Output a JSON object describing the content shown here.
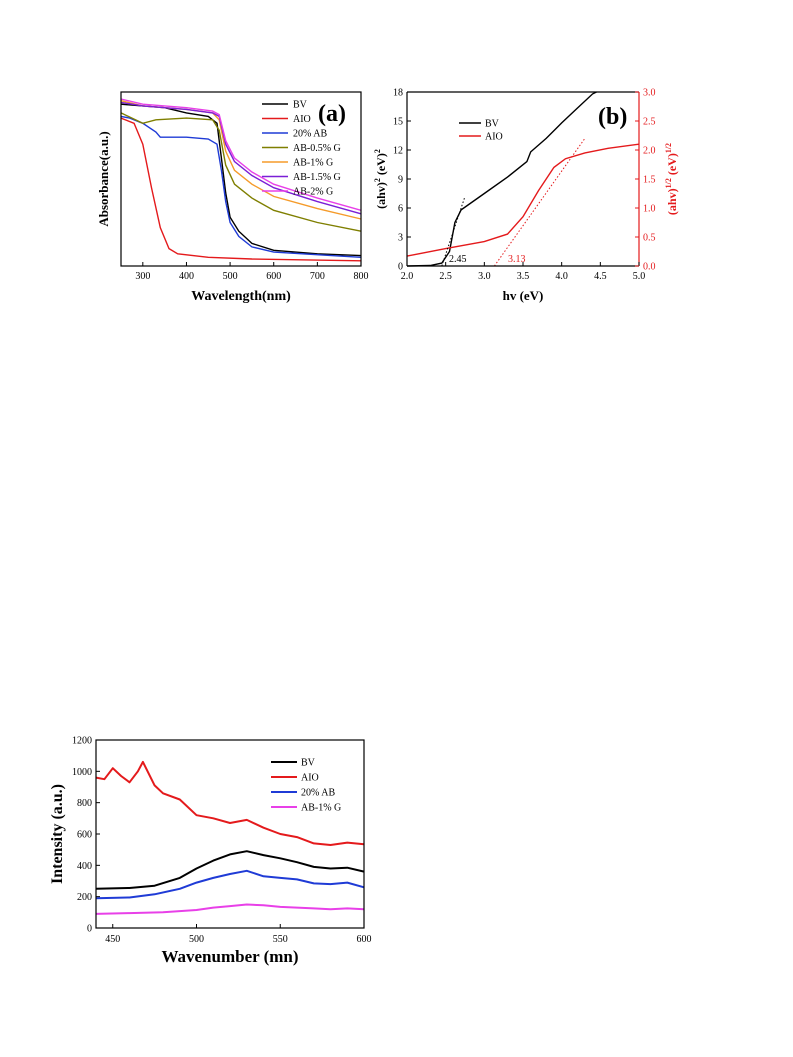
{
  "chart_data": [
    {
      "type": "line",
      "panel_label": "(a)",
      "xlabel": "Wavelength(nm)",
      "ylabel": "Absorbance(a.u.)",
      "xlim": [
        250,
        800
      ],
      "xticks": [
        "300",
        "400",
        "500",
        "600",
        "700",
        "800"
      ],
      "y_tick_labels": false,
      "legend_position": "top-right",
      "series": [
        {
          "name": "BV",
          "color": "#000000",
          "points": [
            [
              250,
              0.93
            ],
            [
              300,
              0.92
            ],
            [
              350,
              0.91
            ],
            [
              400,
              0.88
            ],
            [
              450,
              0.86
            ],
            [
              470,
              0.82
            ],
            [
              480,
              0.62
            ],
            [
              490,
              0.42
            ],
            [
              500,
              0.28
            ],
            [
              520,
              0.2
            ],
            [
              550,
              0.13
            ],
            [
              600,
              0.09
            ],
            [
              700,
              0.07
            ],
            [
              800,
              0.06
            ]
          ]
        },
        {
          "name": "AIO",
          "color": "#e41a1c",
          "points": [
            [
              250,
              0.85
            ],
            [
              280,
              0.82
            ],
            [
              300,
              0.7
            ],
            [
              320,
              0.45
            ],
            [
              340,
              0.22
            ],
            [
              360,
              0.1
            ],
            [
              380,
              0.07
            ],
            [
              450,
              0.05
            ],
            [
              550,
              0.04
            ],
            [
              800,
              0.03
            ]
          ]
        },
        {
          "name": "20% AB",
          "color": "#1f3bd6",
          "points": [
            [
              250,
              0.86
            ],
            [
              270,
              0.85
            ],
            [
              300,
              0.82
            ],
            [
              330,
              0.77
            ],
            [
              340,
              0.74
            ],
            [
              400,
              0.74
            ],
            [
              450,
              0.73
            ],
            [
              470,
              0.7
            ],
            [
              480,
              0.55
            ],
            [
              490,
              0.37
            ],
            [
              500,
              0.25
            ],
            [
              520,
              0.17
            ],
            [
              550,
              0.11
            ],
            [
              600,
              0.08
            ],
            [
              800,
              0.05
            ]
          ]
        },
        {
          "name": "AB-0.5% G",
          "color": "#7f7f00",
          "points": [
            [
              250,
              0.88
            ],
            [
              300,
              0.82
            ],
            [
              330,
              0.84
            ],
            [
              400,
              0.85
            ],
            [
              460,
              0.84
            ],
            [
              475,
              0.78
            ],
            [
              490,
              0.58
            ],
            [
              510,
              0.47
            ],
            [
              550,
              0.39
            ],
            [
              600,
              0.32
            ],
            [
              700,
              0.25
            ],
            [
              800,
              0.2
            ]
          ]
        },
        {
          "name": "AB-1% G",
          "color": "#f59b2a",
          "points": [
            [
              250,
              0.95
            ],
            [
              300,
              0.92
            ],
            [
              350,
              0.91
            ],
            [
              400,
              0.9
            ],
            [
              460,
              0.88
            ],
            [
              475,
              0.84
            ],
            [
              490,
              0.66
            ],
            [
              510,
              0.55
            ],
            [
              550,
              0.47
            ],
            [
              600,
              0.4
            ],
            [
              700,
              0.33
            ],
            [
              800,
              0.27
            ]
          ]
        },
        {
          "name": "AB-1.5% G",
          "color": "#7a1fd6",
          "points": [
            [
              250,
              0.94
            ],
            [
              300,
              0.92
            ],
            [
              350,
              0.91
            ],
            [
              400,
              0.9
            ],
            [
              460,
              0.88
            ],
            [
              475,
              0.86
            ],
            [
              490,
              0.7
            ],
            [
              510,
              0.6
            ],
            [
              550,
              0.52
            ],
            [
              600,
              0.45
            ],
            [
              700,
              0.37
            ],
            [
              800,
              0.3
            ]
          ]
        },
        {
          "name": "AB-2% G",
          "color": "#e840e8",
          "points": [
            [
              250,
              0.96
            ],
            [
              300,
              0.93
            ],
            [
              350,
              0.92
            ],
            [
              400,
              0.91
            ],
            [
              460,
              0.89
            ],
            [
              475,
              0.87
            ],
            [
              490,
              0.72
            ],
            [
              510,
              0.62
            ],
            [
              550,
              0.54
            ],
            [
              600,
              0.47
            ],
            [
              700,
              0.39
            ],
            [
              800,
              0.32
            ]
          ]
        }
      ]
    },
    {
      "type": "line",
      "panel_label": "(b)",
      "xlabel": "hv (eV)",
      "ylabel": "(ahv)",
      "ylabel_sup": "2",
      "ylabel_rest": " (eV)",
      "ylabel_rest_sup": "2",
      "y2label": "(ahv)",
      "y2label_sup": "1/2",
      "y2label_rest": " (eV)",
      "y2label_rest_sup": "1/2",
      "xlim": [
        2.0,
        5.0
      ],
      "ylim": [
        0,
        18
      ],
      "y2lim": [
        0.0,
        3.0
      ],
      "xticks": [
        "2.0",
        "2.5",
        "3.0",
        "3.5",
        "4.0",
        "4.5",
        "5.0"
      ],
      "yticks": [
        "0",
        "3",
        "6",
        "9",
        "12",
        "15",
        "18"
      ],
      "y2ticks": [
        "0.0",
        "0.5",
        "1.0",
        "1.5",
        "2.0",
        "2.5",
        "3.0"
      ],
      "legend_position": "top-left",
      "annotations": [
        {
          "text": "2.45",
          "color": "#000000"
        },
        {
          "text": "3.13",
          "color": "#e41a1c"
        }
      ],
      "series": [
        {
          "name": "BV",
          "color": "#000000",
          "axis": "left",
          "points": [
            [
              2.0,
              0.0
            ],
            [
              2.3,
              0.05
            ],
            [
              2.45,
              0.3
            ],
            [
              2.55,
              1.5
            ],
            [
              2.62,
              4.5
            ],
            [
              2.7,
              5.8
            ],
            [
              3.0,
              7.5
            ],
            [
              3.3,
              9.2
            ],
            [
              3.55,
              10.8
            ],
            [
              3.6,
              11.8
            ],
            [
              3.8,
              13.2
            ],
            [
              4.0,
              14.8
            ],
            [
              4.2,
              16.3
            ],
            [
              4.4,
              17.8
            ],
            [
              4.45,
              18.0
            ]
          ]
        },
        {
          "name": "AIO",
          "color": "#e41a1c",
          "axis": "right",
          "points": [
            [
              2.0,
              0.17
            ],
            [
              2.5,
              0.3
            ],
            [
              3.0,
              0.42
            ],
            [
              3.3,
              0.55
            ],
            [
              3.5,
              0.85
            ],
            [
              3.7,
              1.3
            ],
            [
              3.9,
              1.7
            ],
            [
              4.05,
              1.85
            ],
            [
              4.3,
              1.95
            ],
            [
              4.6,
              2.03
            ],
            [
              5.0,
              2.1
            ]
          ]
        }
      ],
      "tangent_lines": [
        {
          "color": "#000000",
          "axis": "left",
          "from": [
            2.45,
            0.0
          ],
          "to": [
            2.75,
            7.2
          ]
        },
        {
          "color": "#e41a1c",
          "axis": "right",
          "from": [
            3.13,
            0.0
          ],
          "to": [
            4.3,
            2.2
          ]
        }
      ]
    },
    {
      "type": "line",
      "xlabel": "Wavenumber (mn)",
      "ylabel": "Intensity (a.u.)",
      "xlim": [
        440,
        600
      ],
      "ylim": [
        0,
        1200
      ],
      "xticks": [
        "450",
        "500",
        "550",
        "600"
      ],
      "yticks": [
        "0",
        "200",
        "400",
        "600",
        "800",
        "1000",
        "1200"
      ],
      "legend_position": "top-right",
      "series": [
        {
          "name": "BV",
          "color": "#000000",
          "points": [
            [
              440,
              250
            ],
            [
              460,
              255
            ],
            [
              475,
              270
            ],
            [
              490,
              320
            ],
            [
              500,
              380
            ],
            [
              510,
              430
            ],
            [
              520,
              470
            ],
            [
              530,
              490
            ],
            [
              540,
              465
            ],
            [
              550,
              445
            ],
            [
              560,
              420
            ],
            [
              570,
              390
            ],
            [
              580,
              380
            ],
            [
              590,
              385
            ],
            [
              600,
              360
            ]
          ]
        },
        {
          "name": "AIO",
          "color": "#e41a1c",
          "points": [
            [
              440,
              960
            ],
            [
              445,
              950
            ],
            [
              450,
              1020
            ],
            [
              455,
              970
            ],
            [
              460,
              930
            ],
            [
              465,
              1000
            ],
            [
              468,
              1060
            ],
            [
              475,
              910
            ],
            [
              480,
              860
            ],
            [
              490,
              820
            ],
            [
              500,
              720
            ],
            [
              510,
              700
            ],
            [
              520,
              670
            ],
            [
              530,
              690
            ],
            [
              540,
              640
            ],
            [
              550,
              600
            ],
            [
              560,
              580
            ],
            [
              570,
              540
            ],
            [
              580,
              530
            ],
            [
              590,
              545
            ],
            [
              600,
              535
            ]
          ]
        },
        {
          "name": "20% AB",
          "color": "#1f3bd6",
          "points": [
            [
              440,
              190
            ],
            [
              460,
              195
            ],
            [
              475,
              215
            ],
            [
              490,
              250
            ],
            [
              500,
              290
            ],
            [
              510,
              320
            ],
            [
              520,
              345
            ],
            [
              530,
              365
            ],
            [
              540,
              330
            ],
            [
              550,
              320
            ],
            [
              560,
              310
            ],
            [
              570,
              285
            ],
            [
              580,
              280
            ],
            [
              590,
              290
            ],
            [
              600,
              260
            ]
          ]
        },
        {
          "name": "AB-1% G",
          "color": "#e840e8",
          "points": [
            [
              440,
              90
            ],
            [
              460,
              95
            ],
            [
              480,
              100
            ],
            [
              500,
              115
            ],
            [
              510,
              130
            ],
            [
              520,
              140
            ],
            [
              530,
              150
            ],
            [
              540,
              145
            ],
            [
              550,
              135
            ],
            [
              560,
              130
            ],
            [
              570,
              125
            ],
            [
              580,
              120
            ],
            [
              590,
              125
            ],
            [
              600,
              120
            ]
          ]
        }
      ]
    }
  ]
}
